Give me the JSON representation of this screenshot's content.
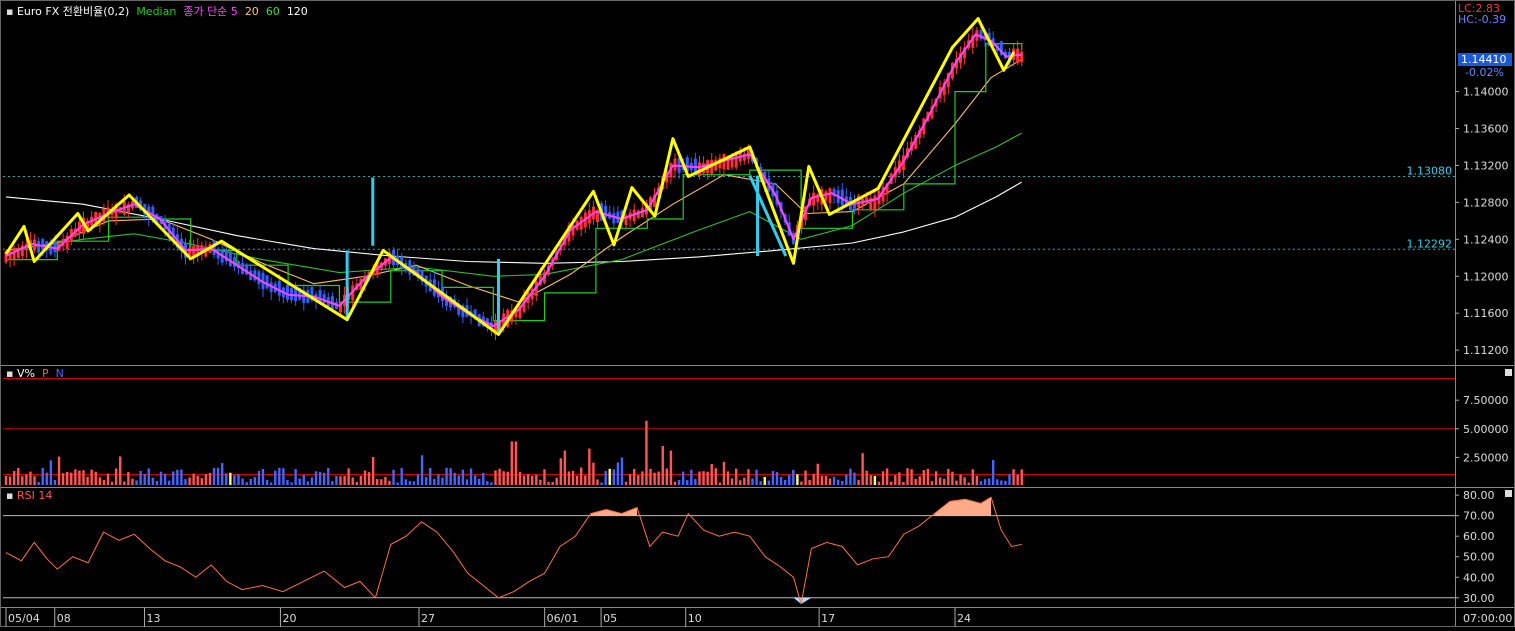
{
  "legend": {
    "price": [
      {
        "text": "Euro FX 전환비율(0,2)",
        "color": "#ffffff"
      },
      {
        "text": "Median",
        "color": "#22cc22"
      },
      {
        "text": "종가 단순 5",
        "color": "#ff44ff"
      },
      {
        "text": "20",
        "color": "#ffcc66"
      },
      {
        "text": "60",
        "color": "#44dd44"
      },
      {
        "text": "120",
        "color": "#ffffff"
      }
    ],
    "volume": [
      {
        "text": "V%",
        "color": "#ffffff"
      },
      {
        "text": "P",
        "color": "#ff5555"
      },
      {
        "text": "N",
        "color": "#4466ff"
      }
    ],
    "rsi": [
      {
        "text": "RSI 14",
        "color": "#ff5555"
      }
    ]
  },
  "top_right": {
    "lc": "LC:2.83",
    "hc": "HC:-0.39",
    "last_price": "1.14410",
    "change": "-0.02%"
  },
  "colors": {
    "background": "#000000",
    "grid": "#3a3a3a",
    "up_candle": "#ff3030",
    "down_candle": "#3060ff",
    "zigzag": "#ffff00",
    "cyan": "#33ccee",
    "rsi_line": "#ff7040",
    "rsi_fill": "#ffaa88",
    "ref_line": "#cc0000"
  },
  "chart_data": [
    {
      "type": "candlestick",
      "panel": "price",
      "y_ticks": [
        "1.14000",
        "1.13600",
        "1.13200",
        "1.12800",
        "1.12400",
        "1.12000",
        "1.11600",
        "1.11200"
      ],
      "ylim": [
        1.1105,
        1.1497
      ],
      "ref_lines": [
        {
          "label": "1.13080",
          "value": 1.1308
        },
        {
          "label": "1.12292",
          "value": 1.12292
        }
      ],
      "zigzag": [
        {
          "d": 0,
          "v": 1.1224
        },
        {
          "d": 0.35,
          "v": 1.1254
        },
        {
          "d": 0.55,
          "v": 1.1216
        },
        {
          "d": 1.4,
          "v": 1.1268
        },
        {
          "d": 1.6,
          "v": 1.1249
        },
        {
          "d": 2.4,
          "v": 1.1288
        },
        {
          "d": 3.6,
          "v": 1.1219
        },
        {
          "d": 4.2,
          "v": 1.1238
        },
        {
          "d": 6.65,
          "v": 1.1153
        },
        {
          "d": 7.35,
          "v": 1.1228
        },
        {
          "d": 9.6,
          "v": 1.1137
        },
        {
          "d": 11.45,
          "v": 1.1292
        },
        {
          "d": 11.85,
          "v": 1.1234
        },
        {
          "d": 12.2,
          "v": 1.1296
        },
        {
          "d": 12.65,
          "v": 1.1265
        },
        {
          "d": 13.0,
          "v": 1.1349
        },
        {
          "d": 13.3,
          "v": 1.1308
        },
        {
          "d": 14.5,
          "v": 1.134
        },
        {
          "d": 15.35,
          "v": 1.1214
        },
        {
          "d": 15.65,
          "v": 1.1319
        },
        {
          "d": 16.05,
          "v": 1.1267
        },
        {
          "d": 17.0,
          "v": 1.1295
        },
        {
          "d": 18.45,
          "v": 1.1448
        },
        {
          "d": 18.95,
          "v": 1.1479
        },
        {
          "d": 19.45,
          "v": 1.1423
        },
        {
          "d": 19.65,
          "v": 1.1443
        }
      ],
      "spikes": [
        {
          "d": 6.65,
          "low": 1.1153,
          "high": 1.1228,
          "color": "#33ccee"
        },
        {
          "d": 7.15,
          "low": 1.1233,
          "high": 1.1307,
          "color": "#33ccee"
        },
        {
          "d": 9.6,
          "low": 1.114,
          "high": 1.1219,
          "color": "#33ccee"
        },
        {
          "d": 14.65,
          "low": 1.1222,
          "high": 1.1309,
          "color": "#33ccee"
        }
      ],
      "ma120": [
        {
          "d": 0,
          "v": 1.1286
        },
        {
          "d": 1.5,
          "v": 1.1278
        },
        {
          "d": 3,
          "v": 1.1262
        },
        {
          "d": 4.5,
          "v": 1.1244
        },
        {
          "d": 6,
          "v": 1.123
        },
        {
          "d": 7.5,
          "v": 1.1222
        },
        {
          "d": 9,
          "v": 1.1216
        },
        {
          "d": 10.5,
          "v": 1.1214
        },
        {
          "d": 12,
          "v": 1.1216
        },
        {
          "d": 13.5,
          "v": 1.1221
        },
        {
          "d": 15,
          "v": 1.1228
        },
        {
          "d": 16.5,
          "v": 1.1236
        },
        {
          "d": 17.5,
          "v": 1.1248
        },
        {
          "d": 18.5,
          "v": 1.1264
        },
        {
          "d": 19.3,
          "v": 1.1286
        },
        {
          "d": 19.8,
          "v": 1.1302
        }
      ],
      "ma60": [
        {
          "d": 0,
          "v": 1.1228
        },
        {
          "d": 1.5,
          "v": 1.124
        },
        {
          "d": 2.5,
          "v": 1.1246
        },
        {
          "d": 3.5,
          "v": 1.1236
        },
        {
          "d": 5,
          "v": 1.1218
        },
        {
          "d": 6.5,
          "v": 1.1204
        },
        {
          "d": 8,
          "v": 1.121
        },
        {
          "d": 9.5,
          "v": 1.12
        },
        {
          "d": 10.5,
          "v": 1.1202
        },
        {
          "d": 12,
          "v": 1.1218
        },
        {
          "d": 13.5,
          "v": 1.125
        },
        {
          "d": 14.5,
          "v": 1.127
        },
        {
          "d": 15.5,
          "v": 1.124
        },
        {
          "d": 16.5,
          "v": 1.1255
        },
        {
          "d": 17.5,
          "v": 1.129
        },
        {
          "d": 18.5,
          "v": 1.132
        },
        {
          "d": 19.3,
          "v": 1.134
        },
        {
          "d": 19.8,
          "v": 1.1355
        }
      ],
      "ma20": [
        {
          "d": 0,
          "v": 1.1228
        },
        {
          "d": 1,
          "v": 1.1236
        },
        {
          "d": 2,
          "v": 1.126
        },
        {
          "d": 3,
          "v": 1.1262
        },
        {
          "d": 4,
          "v": 1.124
        },
        {
          "d": 5,
          "v": 1.1214
        },
        {
          "d": 6,
          "v": 1.1192
        },
        {
          "d": 7,
          "v": 1.12
        },
        {
          "d": 8,
          "v": 1.1212
        },
        {
          "d": 9,
          "v": 1.119
        },
        {
          "d": 10,
          "v": 1.1172
        },
        {
          "d": 11,
          "v": 1.1202
        },
        {
          "d": 12,
          "v": 1.1242
        },
        {
          "d": 13,
          "v": 1.1278
        },
        {
          "d": 14,
          "v": 1.131
        },
        {
          "d": 15,
          "v": 1.13
        },
        {
          "d": 15.6,
          "v": 1.1268
        },
        {
          "d": 16.5,
          "v": 1.127
        },
        {
          "d": 17.5,
          "v": 1.13
        },
        {
          "d": 18.5,
          "v": 1.1365
        },
        {
          "d": 19.2,
          "v": 1.1415
        },
        {
          "d": 19.8,
          "v": 1.1435
        }
      ],
      "ma5": [
        {
          "d": 0,
          "v": 1.1222
        },
        {
          "d": 0.5,
          "v": 1.1235
        },
        {
          "d": 1,
          "v": 1.123
        },
        {
          "d": 1.5,
          "v": 1.1256
        },
        {
          "d": 2,
          "v": 1.1268
        },
        {
          "d": 2.5,
          "v": 1.1278
        },
        {
          "d": 3,
          "v": 1.1262
        },
        {
          "d": 3.5,
          "v": 1.1228
        },
        {
          "d": 4,
          "v": 1.123
        },
        {
          "d": 4.5,
          "v": 1.1212
        },
        {
          "d": 5,
          "v": 1.1194
        },
        {
          "d": 5.5,
          "v": 1.118
        },
        {
          "d": 6,
          "v": 1.1178
        },
        {
          "d": 6.5,
          "v": 1.1168
        },
        {
          "d": 7,
          "v": 1.1198
        },
        {
          "d": 7.5,
          "v": 1.122
        },
        {
          "d": 8,
          "v": 1.1204
        },
        {
          "d": 8.5,
          "v": 1.1178
        },
        {
          "d": 9,
          "v": 1.116
        },
        {
          "d": 9.5,
          "v": 1.1146
        },
        {
          "d": 10,
          "v": 1.1164
        },
        {
          "d": 10.5,
          "v": 1.12
        },
        {
          "d": 11,
          "v": 1.125
        },
        {
          "d": 11.5,
          "v": 1.127
        },
        {
          "d": 12,
          "v": 1.1262
        },
        {
          "d": 12.5,
          "v": 1.1272
        },
        {
          "d": 13,
          "v": 1.132
        },
        {
          "d": 13.5,
          "v": 1.1318
        },
        {
          "d": 14,
          "v": 1.1325
        },
        {
          "d": 14.5,
          "v": 1.1332
        },
        {
          "d": 15,
          "v": 1.1288
        },
        {
          "d": 15.35,
          "v": 1.124
        },
        {
          "d": 15.7,
          "v": 1.1285
        },
        {
          "d": 16.1,
          "v": 1.129
        },
        {
          "d": 16.5,
          "v": 1.1278
        },
        {
          "d": 17,
          "v": 1.1284
        },
        {
          "d": 17.5,
          "v": 1.1325
        },
        {
          "d": 18,
          "v": 1.1375
        },
        {
          "d": 18.5,
          "v": 1.143
        },
        {
          "d": 18.9,
          "v": 1.1462
        },
        {
          "d": 19.2,
          "v": 1.1455
        },
        {
          "d": 19.5,
          "v": 1.1438
        },
        {
          "d": 19.8,
          "v": 1.144
        }
      ],
      "median": [
        {
          "d": 0,
          "v": 1.1218
        },
        {
          "d": 1,
          "v": 1.1238
        },
        {
          "d": 2,
          "v": 1.1264
        },
        {
          "d": 3,
          "v": 1.1262
        },
        {
          "d": 3.6,
          "v": 1.1228
        },
        {
          "d": 4.5,
          "v": 1.1212
        },
        {
          "d": 5.5,
          "v": 1.119
        },
        {
          "d": 6.5,
          "v": 1.1172
        },
        {
          "d": 7.5,
          "v": 1.1206
        },
        {
          "d": 8.5,
          "v": 1.1188
        },
        {
          "d": 9.5,
          "v": 1.1152
        },
        {
          "d": 10.5,
          "v": 1.1182
        },
        {
          "d": 11.5,
          "v": 1.1252
        },
        {
          "d": 12.5,
          "v": 1.1262
        },
        {
          "d": 13.2,
          "v": 1.131
        },
        {
          "d": 14.5,
          "v": 1.1315
        },
        {
          "d": 15.5,
          "v": 1.1252
        },
        {
          "d": 16.5,
          "v": 1.1272
        },
        {
          "d": 17.5,
          "v": 1.13
        },
        {
          "d": 18.5,
          "v": 1.14
        },
        {
          "d": 19.1,
          "v": 1.1452
        },
        {
          "d": 19.8,
          "v": 1.1445
        }
      ]
    },
    {
      "type": "bar",
      "panel": "volume",
      "y_ticks": [
        "7.50000",
        "5.00000",
        "2.50000"
      ],
      "ylim": [
        0,
        10.4
      ],
      "ref_lines": [
        9.4,
        5.0,
        1.0
      ],
      "spikes": [
        {
          "d": 12.5,
          "value": 5.7
        },
        {
          "d": 9.9,
          "value": 3.9
        },
        {
          "d": 12.8,
          "value": 3.5
        }
      ]
    },
    {
      "type": "line",
      "panel": "rsi",
      "y_ticks": [
        "80.00",
        "70.00",
        "60.00",
        "50.00",
        "40.00",
        "30.00"
      ],
      "ylim": [
        26,
        83
      ],
      "ref_lines": [
        70,
        30
      ],
      "series": [
        {
          "points": [
            {
              "d": 0,
              "v": 52
            },
            {
              "d": 0.3,
              "v": 48
            },
            {
              "d": 0.55,
              "v": 57
            },
            {
              "d": 0.8,
              "v": 49
            },
            {
              "d": 1.0,
              "v": 44
            },
            {
              "d": 1.3,
              "v": 50
            },
            {
              "d": 1.6,
              "v": 47
            },
            {
              "d": 1.9,
              "v": 62
            },
            {
              "d": 2.2,
              "v": 58
            },
            {
              "d": 2.5,
              "v": 61
            },
            {
              "d": 2.8,
              "v": 54
            },
            {
              "d": 3.1,
              "v": 48
            },
            {
              "d": 3.4,
              "v": 45
            },
            {
              "d": 3.7,
              "v": 40
            },
            {
              "d": 4.0,
              "v": 46
            },
            {
              "d": 4.3,
              "v": 38
            },
            {
              "d": 4.6,
              "v": 34
            },
            {
              "d": 5.0,
              "v": 36
            },
            {
              "d": 5.4,
              "v": 33
            },
            {
              "d": 5.8,
              "v": 38
            },
            {
              "d": 6.2,
              "v": 43
            },
            {
              "d": 6.6,
              "v": 35
            },
            {
              "d": 6.9,
              "v": 38
            },
            {
              "d": 7.2,
              "v": 30
            },
            {
              "d": 7.5,
              "v": 56
            },
            {
              "d": 7.8,
              "v": 60
            },
            {
              "d": 8.1,
              "v": 67
            },
            {
              "d": 8.4,
              "v": 62
            },
            {
              "d": 8.7,
              "v": 53
            },
            {
              "d": 9.0,
              "v": 42
            },
            {
              "d": 9.3,
              "v": 36
            },
            {
              "d": 9.6,
              "v": 30
            },
            {
              "d": 9.9,
              "v": 33
            },
            {
              "d": 10.2,
              "v": 38
            },
            {
              "d": 10.5,
              "v": 42
            },
            {
              "d": 10.8,
              "v": 55
            },
            {
              "d": 11.1,
              "v": 60
            },
            {
              "d": 11.4,
              "v": 71
            },
            {
              "d": 11.7,
              "v": 73
            },
            {
              "d": 12.0,
              "v": 71
            },
            {
              "d": 12.3,
              "v": 74
            },
            {
              "d": 12.55,
              "v": 55
            },
            {
              "d": 12.8,
              "v": 62
            },
            {
              "d": 13.1,
              "v": 60
            },
            {
              "d": 13.3,
              "v": 71
            },
            {
              "d": 13.6,
              "v": 63
            },
            {
              "d": 13.9,
              "v": 60
            },
            {
              "d": 14.2,
              "v": 62
            },
            {
              "d": 14.5,
              "v": 60
            },
            {
              "d": 14.8,
              "v": 50
            },
            {
              "d": 15.1,
              "v": 45
            },
            {
              "d": 15.35,
              "v": 40
            },
            {
              "d": 15.5,
              "v": 27
            },
            {
              "d": 15.7,
              "v": 54
            },
            {
              "d": 16.0,
              "v": 57
            },
            {
              "d": 16.3,
              "v": 55
            },
            {
              "d": 16.6,
              "v": 46
            },
            {
              "d": 16.9,
              "v": 49
            },
            {
              "d": 17.2,
              "v": 50
            },
            {
              "d": 17.5,
              "v": 61
            },
            {
              "d": 17.8,
              "v": 65
            },
            {
              "d": 18.1,
              "v": 71
            },
            {
              "d": 18.4,
              "v": 77
            },
            {
              "d": 18.7,
              "v": 78
            },
            {
              "d": 19.0,
              "v": 76
            },
            {
              "d": 19.2,
              "v": 79
            },
            {
              "d": 19.4,
              "v": 63
            },
            {
              "d": 19.6,
              "v": 55
            },
            {
              "d": 19.8,
              "v": 56
            }
          ]
        }
      ]
    }
  ],
  "x_axis": {
    "ticks": [
      {
        "label": "05/04",
        "d": 0
      },
      {
        "label": "08",
        "d": 0.95
      },
      {
        "label": "13",
        "d": 2.7
      },
      {
        "label": "20",
        "d": 5.35
      },
      {
        "label": "27",
        "d": 8.05
      },
      {
        "label": "06/01",
        "d": 10.5
      },
      {
        "label": "05",
        "d": 11.6
      },
      {
        "label": "10",
        "d": 13.25
      },
      {
        "label": "17",
        "d": 15.85
      },
      {
        "label": "24",
        "d": 18.5
      }
    ],
    "time_label": "07:00:00"
  }
}
